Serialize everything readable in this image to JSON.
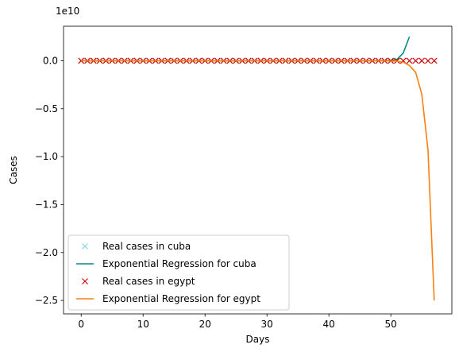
{
  "chart_data": {
    "type": "line",
    "title": "",
    "xlabel": "Days",
    "ylabel": "Cases",
    "y_scale_label": "1e10",
    "xlim": [
      -2.85,
      59.85
    ],
    "ylim": [
      -2.64,
      0.36
    ],
    "y_unit_multiplier": 10000000000.0,
    "x_ticks": [
      0,
      10,
      20,
      30,
      40,
      50
    ],
    "y_ticks": [
      0.0,
      -0.5,
      -1.0,
      -1.5,
      -2.0,
      -2.5
    ],
    "y_tick_labels": [
      "0.0",
      "−0.5",
      "−1.0",
      "−1.5",
      "−2.0",
      "−2.5"
    ],
    "grid": false,
    "legend_position": "lower-left",
    "series": [
      {
        "name": "Real cases in cuba",
        "kind": "marker",
        "marker": "x",
        "color": "#87ceeb",
        "x": [
          0,
          1,
          2,
          3,
          4,
          5,
          6,
          7,
          8,
          9,
          10,
          11,
          12,
          13,
          14,
          15,
          16,
          17,
          18,
          19,
          20,
          21,
          22,
          23,
          24,
          25,
          26,
          27,
          28,
          29,
          30,
          31,
          32,
          33,
          34,
          35,
          36,
          37,
          38,
          39,
          40,
          41,
          42,
          43,
          44,
          45,
          46,
          47,
          48,
          49,
          50,
          51,
          52,
          53
        ],
        "y": [
          0,
          0,
          0,
          0,
          0,
          0,
          0,
          0,
          0,
          0,
          0,
          0,
          0,
          0,
          0,
          0,
          0,
          0,
          0,
          0,
          0,
          0,
          0,
          0,
          0,
          0,
          0,
          0,
          0,
          0,
          0,
          0,
          0,
          0,
          0,
          0,
          0,
          0,
          0,
          0,
          0,
          0,
          0,
          0,
          0,
          0,
          0,
          0,
          0,
          0,
          0,
          0,
          0,
          0
        ]
      },
      {
        "name": "Exponential Regression for cuba",
        "kind": "line",
        "color": "#008b8b",
        "x": [
          0,
          10,
          20,
          30,
          40,
          45,
          48,
          49,
          50,
          51,
          52,
          53
        ],
        "y": [
          0,
          0,
          0,
          0,
          0,
          0.0002,
          0.0008,
          0.0015,
          0.004,
          0.015,
          0.08,
          0.25
        ]
      },
      {
        "name": "Real cases in egypt",
        "kind": "marker",
        "marker": "x",
        "color": "#cc0000",
        "x": [
          0,
          1,
          2,
          3,
          4,
          5,
          6,
          7,
          8,
          9,
          10,
          11,
          12,
          13,
          14,
          15,
          16,
          17,
          18,
          19,
          20,
          21,
          22,
          23,
          24,
          25,
          26,
          27,
          28,
          29,
          30,
          31,
          32,
          33,
          34,
          35,
          36,
          37,
          38,
          39,
          40,
          41,
          42,
          43,
          44,
          45,
          46,
          47,
          48,
          49,
          50,
          51,
          52,
          53,
          54,
          55,
          56,
          57
        ],
        "y": [
          0,
          0,
          0,
          0,
          0,
          0,
          0,
          0,
          0,
          0,
          0,
          0,
          0,
          0,
          0,
          0,
          0,
          0,
          0,
          0,
          0,
          0,
          0,
          0,
          0,
          0,
          0,
          0,
          0,
          0,
          0,
          0,
          0,
          0,
          0,
          0,
          0,
          0,
          0,
          0,
          0,
          0,
          0,
          0,
          0,
          0,
          0,
          0,
          0,
          0,
          0,
          0,
          0,
          0,
          0,
          0,
          0,
          0
        ]
      },
      {
        "name": "Exponential Regression for egypt",
        "kind": "line",
        "color": "#ff7f0e",
        "x": [
          0,
          10,
          20,
          30,
          40,
          45,
          48,
          50,
          51,
          52,
          53,
          54,
          55,
          56,
          57
        ],
        "y": [
          0,
          0,
          0,
          0,
          0,
          0,
          -0.0005,
          -0.002,
          -0.005,
          -0.015,
          -0.05,
          -0.12,
          -0.35,
          -0.93,
          -2.5
        ]
      }
    ]
  }
}
